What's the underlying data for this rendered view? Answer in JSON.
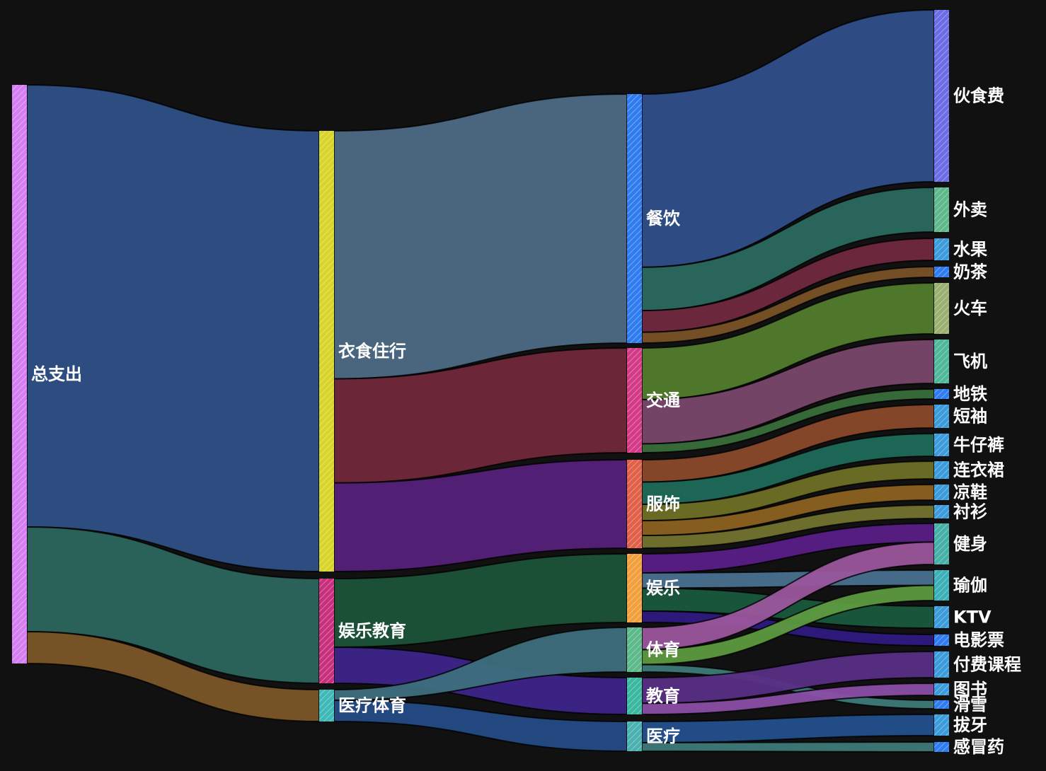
{
  "chart_data": {
    "type": "sankey",
    "title": "",
    "nodes": [
      {
        "id": "总支出",
        "label": "总支出",
        "color": "#d57ef2"
      },
      {
        "id": "衣食住行",
        "label": "衣食住行",
        "color": "#d9d42a"
      },
      {
        "id": "娱乐教育",
        "label": "娱乐教育",
        "color": "#c8307e"
      },
      {
        "id": "医疗体育",
        "label": "医疗体育",
        "color": "#3fb8b8"
      },
      {
        "id": "餐饮",
        "label": "餐饮",
        "color": "#2f7cf0"
      },
      {
        "id": "交通",
        "label": "交通",
        "color": "#d43a86"
      },
      {
        "id": "服饰",
        "label": "服饰",
        "color": "#e0604a"
      },
      {
        "id": "娱乐",
        "label": "娱乐",
        "color": "#f2a03e"
      },
      {
        "id": "体育",
        "label": "体育",
        "color": "#5db88a"
      },
      {
        "id": "教育",
        "label": "教育",
        "color": "#3cb8a0"
      },
      {
        "id": "医疗",
        "label": "医疗",
        "color": "#4ab0b0"
      },
      {
        "id": "伙食费",
        "label": "伙食费",
        "color": "#6b6ce6"
      },
      {
        "id": "外卖",
        "label": "外卖",
        "color": "#5fb88a"
      },
      {
        "id": "水果",
        "label": "水果",
        "color": "#3b9bdb"
      },
      {
        "id": "奶茶",
        "label": "奶茶",
        "color": "#2f7cf0"
      },
      {
        "id": "火车",
        "label": "火车",
        "color": "#9bb070"
      },
      {
        "id": "飞机",
        "label": "飞机",
        "color": "#4fb89a"
      },
      {
        "id": "地铁",
        "label": "地铁",
        "color": "#2f7cf0"
      },
      {
        "id": "短袖",
        "label": "短袖",
        "color": "#3b9bdb"
      },
      {
        "id": "牛仔裤",
        "label": "牛仔裤",
        "color": "#3b9bdb"
      },
      {
        "id": "连衣裙",
        "label": "连衣裙",
        "color": "#3b9bdb"
      },
      {
        "id": "凉鞋",
        "label": "凉鞋",
        "color": "#3b9bdb"
      },
      {
        "id": "衬衫",
        "label": "衬衫",
        "color": "#3b9bdb"
      },
      {
        "id": "健身",
        "label": "健身",
        "color": "#46b0a8"
      },
      {
        "id": "瑜伽",
        "label": "瑜伽",
        "color": "#3bb0b8"
      },
      {
        "id": "KTV",
        "label": "KTV",
        "color": "#3b9bdb"
      },
      {
        "id": "电影票",
        "label": "电影票",
        "color": "#2f7cf0"
      },
      {
        "id": "付费课程",
        "label": "付费课程",
        "color": "#3b9bdb"
      },
      {
        "id": "图书",
        "label": "图书",
        "color": "#3b9bdb"
      },
      {
        "id": "滑雪",
        "label": "滑雪",
        "color": "#2f7cf0"
      },
      {
        "id": "拔牙",
        "label": "拔牙",
        "color": "#3b9bdb"
      },
      {
        "id": "感冒药",
        "label": "感冒药",
        "color": "#2f7cf0"
      }
    ],
    "links": [
      {
        "source": "总支出",
        "target": "衣食住行",
        "value": 625,
        "color": "#2f5086"
      },
      {
        "source": "总支出",
        "target": "娱乐教育",
        "value": 148,
        "color": "#2c665e"
      },
      {
        "source": "总支出",
        "target": "医疗体育",
        "value": 45,
        "color": "#7b5728"
      },
      {
        "source": "衣食住行",
        "target": "餐饮",
        "value": 350,
        "color": "#4d6b85"
      },
      {
        "source": "衣食住行",
        "target": "交通",
        "value": 147,
        "color": "#71293b"
      },
      {
        "source": "衣食住行",
        "target": "服饰",
        "value": 125,
        "color": "#55217a"
      },
      {
        "source": "娱乐教育",
        "target": "娱乐",
        "value": 95,
        "color": "#1c5439"
      },
      {
        "source": "娱乐教育",
        "target": "教育",
        "value": 50,
        "color": "#3d2589"
      },
      {
        "source": "医疗体育",
        "target": "体育",
        "value": 15,
        "color": "#3e6f7e"
      },
      {
        "source": "医疗体育",
        "target": "医疗",
        "value": 30,
        "color": "#244c86"
      },
      {
        "source": "餐饮",
        "target": "伙食费",
        "value": 240,
        "color": "#30508a"
      },
      {
        "source": "餐饮",
        "target": "外卖",
        "value": 60,
        "color": "#2b6a60"
      },
      {
        "source": "餐饮",
        "target": "水果",
        "value": 30,
        "color": "#71293e"
      },
      {
        "source": "餐饮",
        "target": "奶茶",
        "value": 15,
        "color": "#7a5226"
      },
      {
        "source": "交通",
        "target": "火车",
        "value": 70,
        "color": "#537d2d"
      },
      {
        "source": "交通",
        "target": "飞机",
        "value": 60,
        "color": "#7a486c"
      },
      {
        "source": "交通",
        "target": "地铁",
        "value": 12,
        "color": "#3a6e3a"
      },
      {
        "source": "服饰",
        "target": "短袖",
        "value": 30,
        "color": "#8a4a2a"
      },
      {
        "source": "服饰",
        "target": "牛仔裤",
        "value": 30,
        "color": "#1f6a58"
      },
      {
        "source": "服饰",
        "target": "连衣裙",
        "value": 22,
        "color": "#6f7025"
      },
      {
        "source": "服饰",
        "target": "凉鞋",
        "value": 20,
        "color": "#8b6221"
      },
      {
        "source": "服饰",
        "target": "衬衫",
        "value": 17,
        "color": "#737430"
      },
      {
        "source": "娱乐",
        "target": "健身",
        "value": 25,
        "color": "#5a1f86"
      },
      {
        "source": "娱乐",
        "target": "瑜伽",
        "value": 20,
        "color": "#4a7190"
      },
      {
        "source": "娱乐",
        "target": "KTV",
        "value": 30,
        "color": "#1a5a3e"
      },
      {
        "source": "娱乐",
        "target": "电影票",
        "value": 15,
        "color": "#2e1a80"
      },
      {
        "source": "体育",
        "target": "健身",
        "value": 30,
        "color": "#9a569c"
      },
      {
        "source": "体育",
        "target": "瑜伽",
        "value": 20,
        "color": "#5e9a40"
      },
      {
        "source": "体育",
        "target": "滑雪",
        "value": 10,
        "color": "#3e7a78"
      },
      {
        "source": "教育",
        "target": "付费课程",
        "value": 35,
        "color": "#5a2f86"
      },
      {
        "source": "教育",
        "target": "图书",
        "value": 15,
        "color": "#8b4ea6"
      },
      {
        "source": "医疗",
        "target": "拔牙",
        "value": 30,
        "color": "#24508c"
      },
      {
        "source": "医疗",
        "target": "感冒药",
        "value": 12,
        "color": "#3e7a78"
      }
    ]
  }
}
